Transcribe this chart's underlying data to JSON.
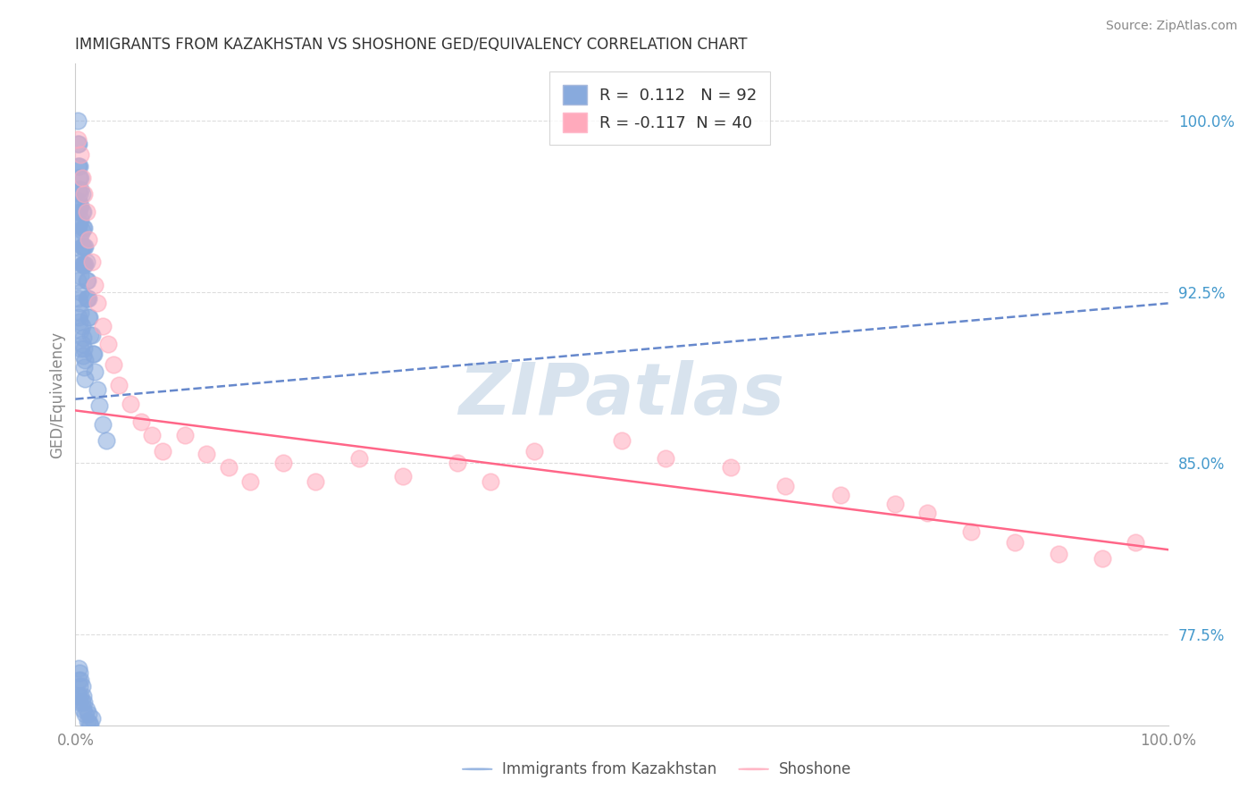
{
  "title": "IMMIGRANTS FROM KAZAKHSTAN VS SHOSHONE GED/EQUIVALENCY CORRELATION CHART",
  "source": "Source: ZipAtlas.com",
  "ylabel": "GED/Equivalency",
  "legend_label_1": "Immigrants from Kazakhstan",
  "legend_label_2": "Shoshone",
  "r1": 0.112,
  "n1": 92,
  "r2": -0.117,
  "n2": 40,
  "y_tick_labels": [
    "77.5%",
    "85.0%",
    "92.5%",
    "100.0%"
  ],
  "y_tick_values": [
    0.775,
    0.85,
    0.925,
    1.0
  ],
  "x_lim": [
    0.0,
    1.0
  ],
  "y_lim": [
    0.735,
    1.025
  ],
  "color_blue": "#88AADD",
  "color_pink": "#FFAABC",
  "trend_blue_color": "#6688CC",
  "trend_pink_color": "#FF6688",
  "watermark": "ZIPatlas",
  "watermark_color": "#C8D8E8",
  "blue_trend_x0": 0.0,
  "blue_trend_y0": 0.878,
  "blue_trend_x1": 1.0,
  "blue_trend_y1": 0.92,
  "pink_trend_x0": 0.0,
  "pink_trend_y0": 0.873,
  "pink_trend_x1": 1.0,
  "pink_trend_y1": 0.812,
  "blue_scatter_x": [
    0.002,
    0.002,
    0.002,
    0.003,
    0.003,
    0.003,
    0.003,
    0.003,
    0.003,
    0.003,
    0.004,
    0.004,
    0.004,
    0.004,
    0.004,
    0.004,
    0.005,
    0.005,
    0.005,
    0.005,
    0.005,
    0.005,
    0.005,
    0.005,
    0.005,
    0.006,
    0.006,
    0.006,
    0.006,
    0.006,
    0.007,
    0.007,
    0.007,
    0.007,
    0.008,
    0.008,
    0.008,
    0.009,
    0.009,
    0.01,
    0.01,
    0.01,
    0.011,
    0.011,
    0.012,
    0.012,
    0.013,
    0.014,
    0.015,
    0.016,
    0.017,
    0.018,
    0.02,
    0.022,
    0.025,
    0.028,
    0.002,
    0.003,
    0.003,
    0.004,
    0.004,
    0.005,
    0.005,
    0.005,
    0.006,
    0.006,
    0.007,
    0.007,
    0.008,
    0.008,
    0.009,
    0.009,
    0.003,
    0.003,
    0.003,
    0.004,
    0.004,
    0.004,
    0.005,
    0.005,
    0.006,
    0.006,
    0.007,
    0.007,
    0.008,
    0.009,
    0.01,
    0.011,
    0.012,
    0.013,
    0.014,
    0.015
  ],
  "blue_scatter_y": [
    1.0,
    0.99,
    0.98,
    0.99,
    0.98,
    0.975,
    0.97,
    0.965,
    0.96,
    0.955,
    0.98,
    0.975,
    0.968,
    0.962,
    0.955,
    0.948,
    0.975,
    0.97,
    0.963,
    0.957,
    0.95,
    0.944,
    0.938,
    0.932,
    0.925,
    0.968,
    0.96,
    0.952,
    0.945,
    0.937,
    0.96,
    0.953,
    0.945,
    0.937,
    0.953,
    0.945,
    0.937,
    0.945,
    0.937,
    0.938,
    0.93,
    0.922,
    0.93,
    0.922,
    0.922,
    0.914,
    0.914,
    0.906,
    0.906,
    0.898,
    0.898,
    0.89,
    0.882,
    0.875,
    0.867,
    0.86,
    0.93,
    0.922,
    0.914,
    0.92,
    0.912,
    0.916,
    0.908,
    0.9,
    0.91,
    0.902,
    0.905,
    0.897,
    0.9,
    0.892,
    0.895,
    0.887,
    0.76,
    0.755,
    0.748,
    0.758,
    0.752,
    0.745,
    0.755,
    0.748,
    0.752,
    0.745,
    0.748,
    0.742,
    0.745,
    0.74,
    0.742,
    0.737,
    0.74,
    0.736,
    0.735,
    0.738
  ],
  "pink_scatter_x": [
    0.002,
    0.005,
    0.006,
    0.008,
    0.01,
    0.012,
    0.015,
    0.018,
    0.02,
    0.025,
    0.03,
    0.035,
    0.04,
    0.05,
    0.06,
    0.07,
    0.08,
    0.1,
    0.12,
    0.14,
    0.16,
    0.19,
    0.22,
    0.26,
    0.3,
    0.35,
    0.38,
    0.42,
    0.5,
    0.54,
    0.6,
    0.65,
    0.7,
    0.75,
    0.78,
    0.82,
    0.86,
    0.9,
    0.94,
    0.97
  ],
  "pink_scatter_y": [
    0.992,
    0.985,
    0.975,
    0.968,
    0.96,
    0.948,
    0.938,
    0.928,
    0.92,
    0.91,
    0.902,
    0.893,
    0.884,
    0.876,
    0.868,
    0.862,
    0.855,
    0.862,
    0.854,
    0.848,
    0.842,
    0.85,
    0.842,
    0.852,
    0.844,
    0.85,
    0.842,
    0.855,
    0.86,
    0.852,
    0.848,
    0.84,
    0.836,
    0.832,
    0.828,
    0.82,
    0.815,
    0.81,
    0.808,
    0.815
  ]
}
